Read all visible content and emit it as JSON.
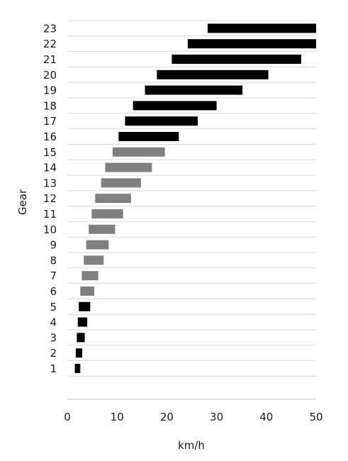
{
  "chart_data": {
    "type": "bar",
    "orientation": "horizontal-range",
    "xlabel": "km/h",
    "ylabel": "Gear",
    "xlim": [
      0,
      50
    ],
    "xticks": [
      "0",
      "10",
      "20",
      "30",
      "40",
      "50"
    ],
    "grid": "horizontal",
    "categories": [
      "1",
      "2",
      "3",
      "4",
      "5",
      "6",
      "7",
      "8",
      "9",
      "10",
      "11",
      "12",
      "13",
      "14",
      "15",
      "16",
      "17",
      "18",
      "19",
      "20",
      "21",
      "22",
      "23"
    ],
    "ranges": [
      [
        1.5,
        2.6
      ],
      [
        1.7,
        3.0
      ],
      [
        1.9,
        3.5
      ],
      [
        2.1,
        4.0
      ],
      [
        2.3,
        4.6
      ],
      [
        2.6,
        5.4
      ],
      [
        2.9,
        6.2
      ],
      [
        3.3,
        7.3
      ],
      [
        3.8,
        8.3
      ],
      [
        4.3,
        9.6
      ],
      [
        4.9,
        11.2
      ],
      [
        5.6,
        12.8
      ],
      [
        6.8,
        14.8
      ],
      [
        7.6,
        17.0
      ],
      [
        9.1,
        19.6
      ],
      [
        10.3,
        22.4
      ],
      [
        11.6,
        26.2
      ],
      [
        13.2,
        30.0
      ],
      [
        15.6,
        35.2
      ],
      [
        18.0,
        40.4
      ],
      [
        21.0,
        47.0
      ],
      [
        24.2,
        50.0
      ],
      [
        28.2,
        50.0
      ]
    ],
    "groups": [
      "low",
      "low",
      "low",
      "low",
      "low",
      "mid",
      "mid",
      "mid",
      "mid",
      "mid",
      "mid",
      "mid",
      "mid",
      "mid",
      "mid",
      "high",
      "high",
      "high",
      "high",
      "high",
      "high",
      "high",
      "high"
    ],
    "colors": {
      "low": "#000000",
      "mid": "#808080",
      "high": "#000000"
    }
  }
}
